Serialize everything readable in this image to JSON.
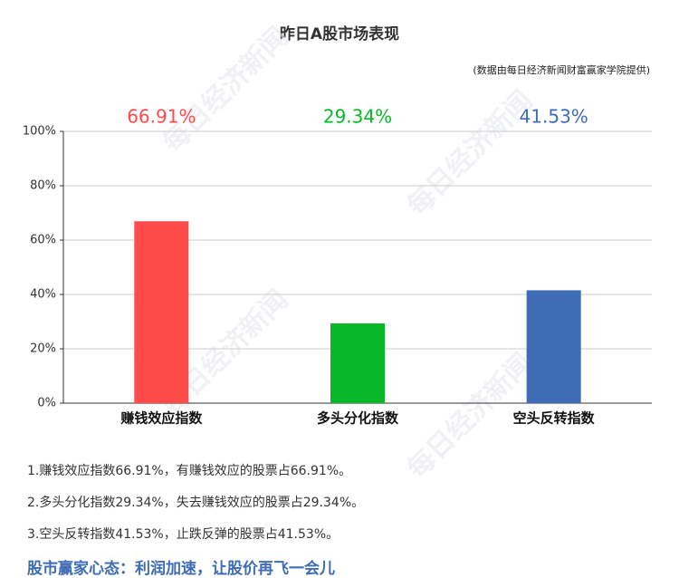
{
  "chart_data": {
    "type": "bar",
    "title": "昨日A股市场表现",
    "subtitle": "(数据由每日经济新闻财富赢家学院提供)",
    "categories": [
      "赚钱效应指数",
      "多头分化指数",
      "空头反转指数"
    ],
    "values": [
      66.91,
      29.34,
      41.53
    ],
    "value_labels": [
      "66.91%",
      "29.34%",
      "41.53%"
    ],
    "colors": [
      "#ff4a4a",
      "#09b82a",
      "#3e6db5"
    ],
    "ylim": [
      0,
      100
    ],
    "yticks": [
      {
        "value": 0,
        "label": "0%"
      },
      {
        "value": 20,
        "label": "20%"
      },
      {
        "value": 40,
        "label": "40%"
      },
      {
        "value": 60,
        "label": "60%"
      },
      {
        "value": 80,
        "label": "80%"
      },
      {
        "value": 100,
        "label": "100%"
      }
    ],
    "grid": true
  },
  "notes": [
    "1.赚钱效应指数66.91%，有赚钱效应的股票占66.91%。",
    "2.多头分化指数29.34%，失去赚钱效应的股票占29.34%。",
    "3.空头反转指数41.53%，止跌反弹的股票占41.53%。"
  ],
  "slogan": "股市赢家心态：利润加速，让股价再飞一会儿",
  "watermark": "每日经济新闻"
}
